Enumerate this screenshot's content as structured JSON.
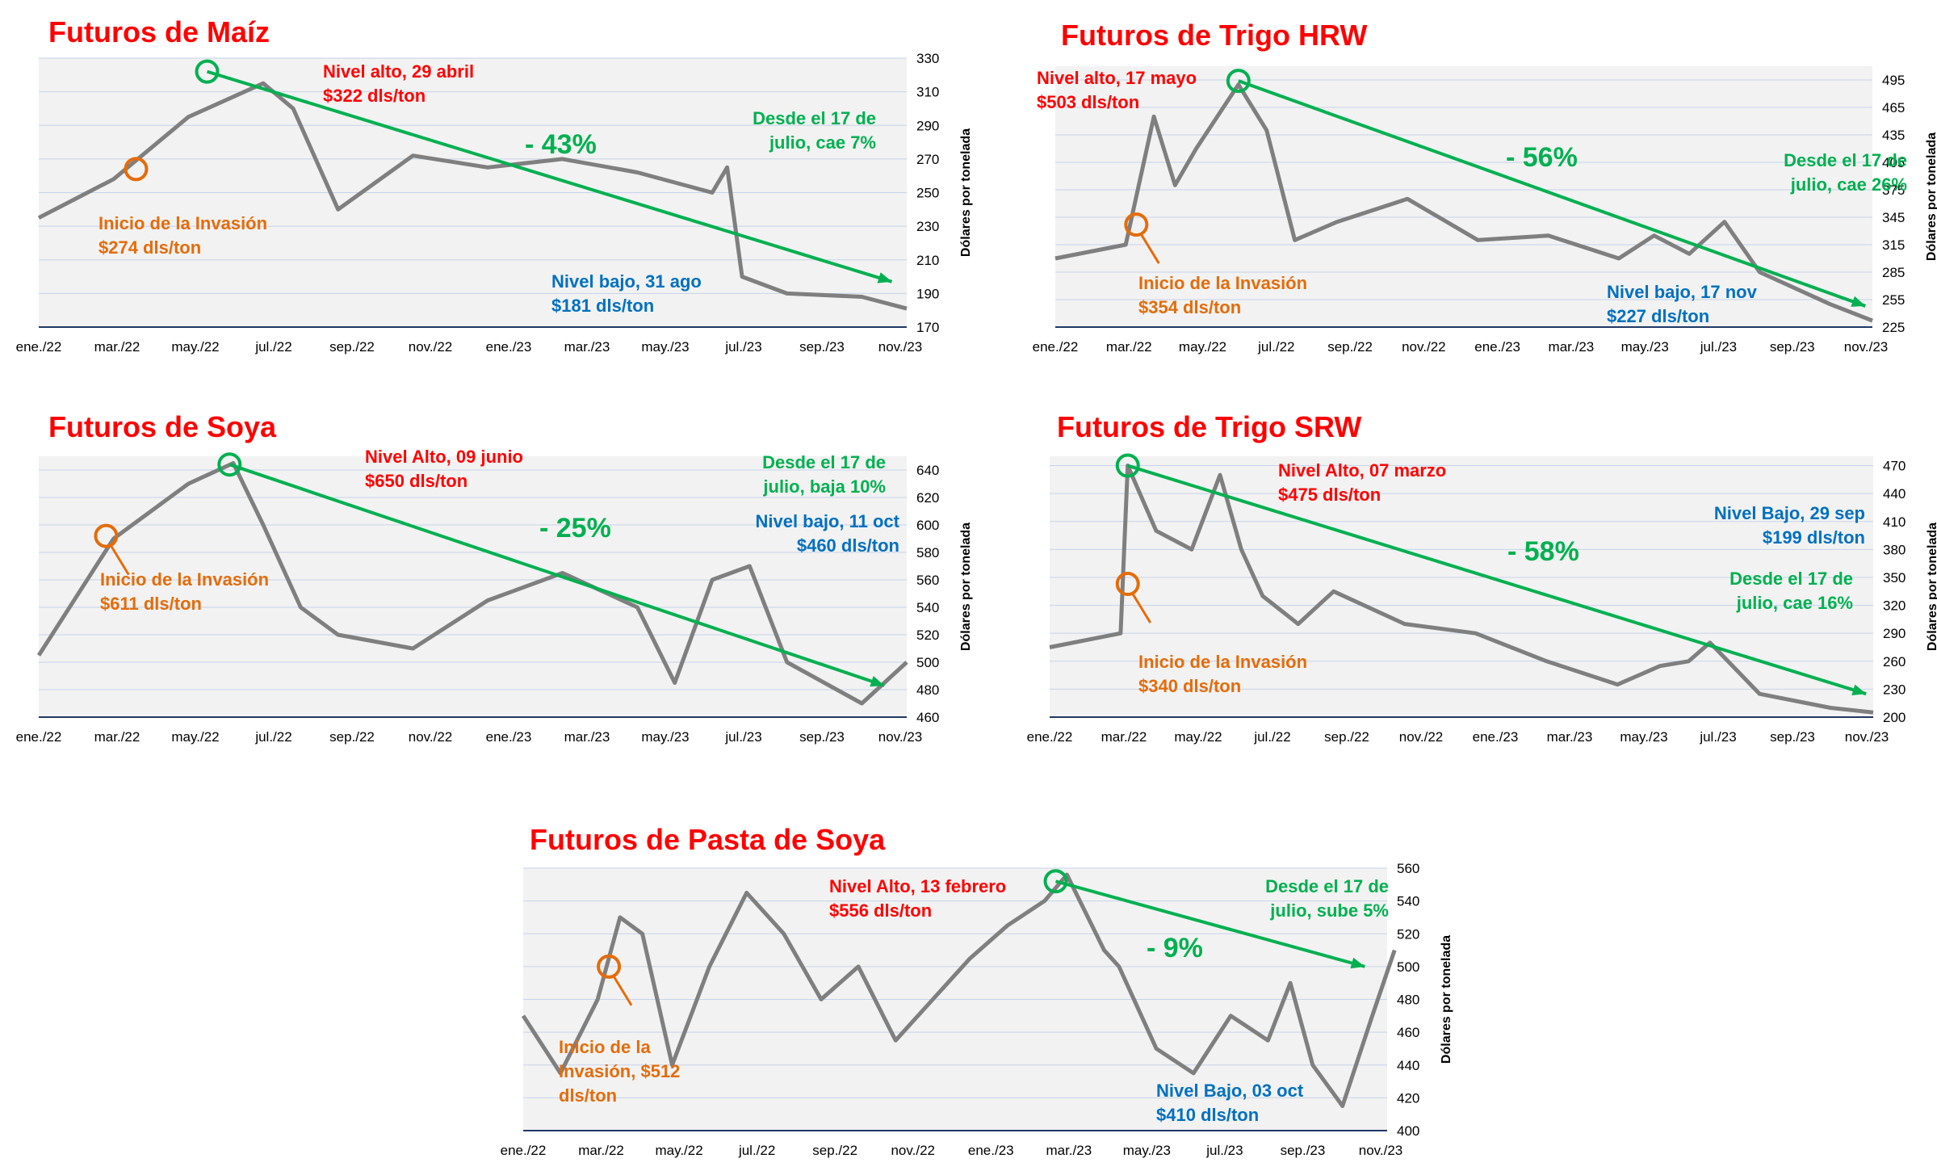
{
  "colors": {
    "title": "#ff0000",
    "price_line": "#7f7f7f",
    "trend": "#00b050",
    "invasion": "#e46c0a",
    "low": "#0070c0",
    "high": "#ff0000",
    "plot_bg": "#f2f2f2",
    "grid": "#c6d3ea"
  },
  "chart_data": [
    {
      "type": "line",
      "title": "Futuros de Maíz",
      "ylabel": "Dólares por tonelada",
      "ylim": [
        170,
        330
      ],
      "yticks": [
        "330",
        "310",
        "290",
        "270",
        "250",
        "230",
        "210",
        "190",
        "170"
      ],
      "xticks": [
        "ene./22",
        "mar./22",
        "may./22",
        "jul./22",
        "sep./22",
        "nov./22",
        "ene./23",
        "mar./23",
        "may./23",
        "jul./23",
        "sep./23",
        "nov./23"
      ],
      "grid": true,
      "series": [
        {
          "x": [
            0,
            1,
            2,
            3,
            3.4,
            4,
            5,
            6,
            7,
            8,
            9,
            9.2,
            9.4,
            10,
            11,
            11.6
          ],
          "values": [
            235,
            258,
            295,
            315,
            300,
            240,
            272,
            265,
            270,
            262,
            250,
            265,
            200,
            190,
            188,
            181
          ]
        }
      ],
      "trend": {
        "x": [
          2.25,
          11.4
        ],
        "values": [
          322,
          197
        ]
      },
      "invasion": {
        "x": 1.3,
        "value": 264
      },
      "annotations": {
        "high": [
          "Nivel alto, 29 abril",
          "$322 dls/ton"
        ],
        "invasion": [
          "Inicio de la Invasión",
          "$274 dls/ton"
        ],
        "low": [
          "Nivel bajo, 31 ago",
          "$181 dls/ton"
        ],
        "since": [
          "Desde el 17 de",
          "julio, cae 7%"
        ],
        "change": "- 43%"
      }
    },
    {
      "type": "line",
      "title": "Futuros de Trigo HRW",
      "ylabel": "Dólares por tonelada",
      "ylim": [
        225,
        510
      ],
      "yticks": [
        "495",
        "465",
        "435",
        "405",
        "375",
        "345",
        "315",
        "285",
        "255",
        "225"
      ],
      "xticks": [
        "ene./22",
        "mar./22",
        "may./22",
        "jul./22",
        "sep./22",
        "nov./22",
        "ene./23",
        "mar./23",
        "may./23",
        "jul./23",
        "sep./23",
        "nov./23"
      ],
      "grid": true,
      "series": [
        {
          "x": [
            0,
            1,
            1.4,
            1.7,
            2,
            2.6,
            3,
            3.4,
            4,
            5,
            6,
            7,
            8,
            8.5,
            9,
            9.5,
            10,
            11,
            11.6
          ],
          "values": [
            300,
            315,
            455,
            380,
            420,
            490,
            440,
            320,
            340,
            365,
            320,
            325,
            300,
            325,
            305,
            340,
            285,
            250,
            232
          ]
        }
      ],
      "trend": {
        "x": [
          2.6,
          11.5
        ],
        "values": [
          494,
          248
        ]
      },
      "invasion": {
        "x": 1.15,
        "value": 337
      },
      "annotations": {
        "high": [
          "Nivel alto, 17 mayo",
          "$503 dls/ton"
        ],
        "invasion": [
          "Inicio de la Invasión",
          "$354 dls/ton"
        ],
        "low": [
          "Nivel bajo, 17 nov",
          "$227 dls/ton"
        ],
        "since": [
          "Desde el 17 de",
          "julio, cae 26%"
        ],
        "change": "- 56%"
      }
    },
    {
      "type": "line",
      "title": "Futuros de Soya",
      "ylabel": "Dólares por tonelada",
      "ylim": [
        460,
        650
      ],
      "yticks": [
        "640",
        "620",
        "600",
        "580",
        "560",
        "540",
        "520",
        "500",
        "480",
        "460"
      ],
      "xticks": [
        "ene./22",
        "mar./22",
        "may./22",
        "jul./22",
        "sep./22",
        "nov./22",
        "ene./23",
        "mar./23",
        "may./23",
        "jul./23",
        "sep./23",
        "nov./23"
      ],
      "grid": true,
      "series": [
        {
          "x": [
            0,
            1,
            2,
            2.6,
            3,
            3.5,
            4,
            5,
            6,
            7,
            8,
            8.5,
            9,
            9.5,
            10,
            11,
            11.6
          ],
          "values": [
            505,
            590,
            630,
            645,
            600,
            540,
            520,
            510,
            545,
            565,
            540,
            485,
            560,
            570,
            500,
            470,
            500
          ]
        }
      ],
      "trend": {
        "x": [
          2.55,
          11.3
        ],
        "values": [
          644,
          483
        ]
      },
      "invasion": {
        "x": 0.9,
        "value": 592
      },
      "annotations": {
        "high": [
          "Nivel Alto, 09 junio",
          "$650 dls/ton"
        ],
        "invasion": [
          "Inicio de la Invasión",
          "$611 dls/ton"
        ],
        "low": [
          "Nivel bajo, 11 oct",
          "$460 dls/ton"
        ],
        "since": [
          "Desde el 17 de",
          "julio, baja 10%"
        ],
        "change": "- 25%"
      }
    },
    {
      "type": "line",
      "title": "Futuros de Trigo SRW",
      "ylabel": "Dólares por tonelada",
      "ylim": [
        200,
        480
      ],
      "yticks": [
        "470",
        "440",
        "410",
        "380",
        "350",
        "320",
        "290",
        "260",
        "230",
        "200"
      ],
      "xticks": [
        "ene./22",
        "mar./22",
        "may./22",
        "jul./22",
        "sep./22",
        "nov./22",
        "ene./23",
        "mar./23",
        "may./23",
        "jul./23",
        "sep./23",
        "nov./23"
      ],
      "grid": true,
      "series": [
        {
          "x": [
            0,
            1,
            1.1,
            1.5,
            2,
            2.4,
            2.7,
            3,
            3.5,
            4,
            5,
            6,
            7,
            8,
            8.6,
            9,
            9.3,
            10,
            11,
            11.6
          ],
          "values": [
            275,
            290,
            470,
            400,
            380,
            460,
            380,
            330,
            300,
            335,
            300,
            290,
            260,
            235,
            255,
            260,
            280,
            225,
            210,
            205
          ]
        }
      ],
      "trend": {
        "x": [
          1.1,
          11.5
        ],
        "values": [
          470,
          225
        ]
      },
      "invasion": {
        "x": 1.1,
        "value": 343
      },
      "annotations": {
        "high": [
          "Nivel Alto, 07 marzo",
          "$475 dls/ton"
        ],
        "invasion": [
          "Inicio de la Invasión",
          "$340 dls/ton"
        ],
        "low": [
          "Nivel Bajo, 29 sep",
          "$199 dls/ton"
        ],
        "since": [
          "Desde el 17 de",
          "julio, cae 16%"
        ],
        "change": "- 58%"
      }
    },
    {
      "type": "line",
      "title": "Futuros de Pasta de Soya",
      "ylabel": "Dólares por tonelada",
      "ylim": [
        400,
        560
      ],
      "yticks": [
        "560",
        "540",
        "520",
        "500",
        "480",
        "460",
        "440",
        "420",
        "400"
      ],
      "xticks": [
        "ene./22",
        "mar./22",
        "may./22",
        "jul./22",
        "sep./22",
        "nov./22",
        "ene./23",
        "mar./23",
        "may./23",
        "jul./23",
        "sep./23",
        "nov./23"
      ],
      "grid": true,
      "series": [
        {
          "x": [
            0,
            0.5,
            1,
            1.3,
            1.6,
            2,
            2.5,
            3,
            3.5,
            4,
            4.5,
            5,
            5.5,
            6,
            6.5,
            7,
            7.3,
            7.8,
            8,
            8.5,
            9,
            9.5,
            10,
            10.3,
            10.6,
            11,
            11.4,
            11.7
          ],
          "values": [
            470,
            435,
            480,
            530,
            520,
            440,
            500,
            545,
            520,
            480,
            500,
            455,
            480,
            505,
            525,
            540,
            556,
            510,
            500,
            450,
            435,
            470,
            455,
            490,
            440,
            415,
            470,
            510
          ]
        }
      ],
      "trend": {
        "x": [
          7.15,
          11.3
        ],
        "values": [
          552,
          500
        ]
      },
      "invasion": {
        "x": 1.15,
        "value": 500
      },
      "annotations": {
        "high": [
          "Nivel Alto, 13 febrero",
          "$556 dls/ton"
        ],
        "invasion": [
          "Inicio de la",
          "Invasión, $512",
          "dls/ton"
        ],
        "low": [
          "Nivel Bajo, 03 oct",
          "$410 dls/ton"
        ],
        "since": [
          "Desde el 17 de",
          "julio, sube 5%"
        ],
        "change": "- 9%"
      }
    }
  ]
}
